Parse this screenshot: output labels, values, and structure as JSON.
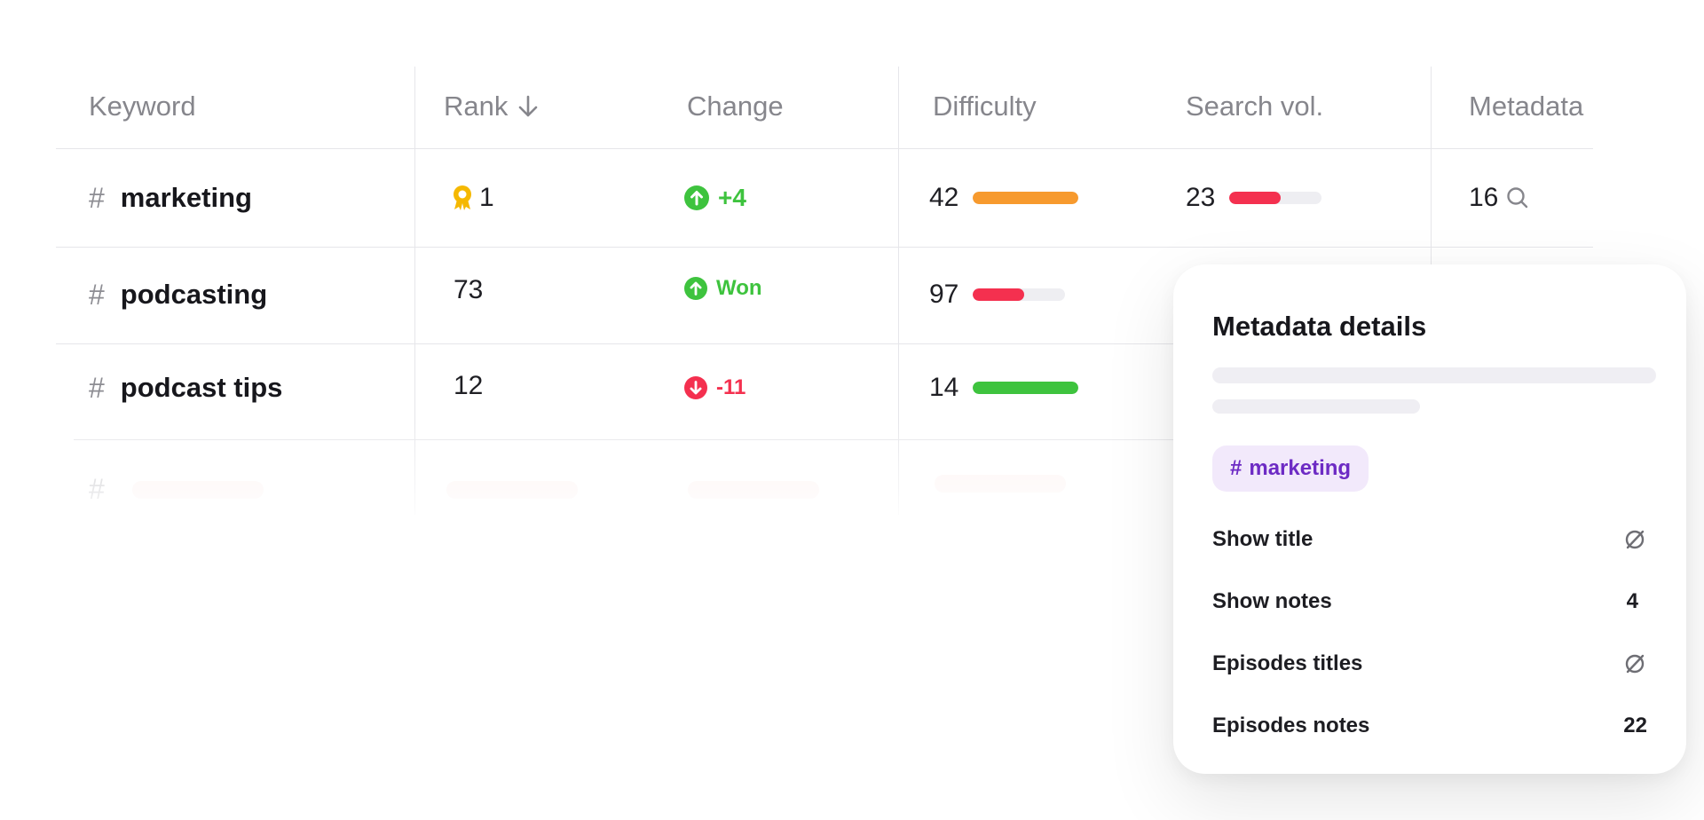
{
  "headers": {
    "keyword": "Keyword",
    "rank": "Rank",
    "change": "Change",
    "difficulty": "Difficulty",
    "search_vol": "Search vol.",
    "metadata": "Metadata"
  },
  "rows": [
    {
      "keyword": "marketing",
      "rank": "1",
      "rank_badge": "award-icon",
      "change": "+4",
      "change_dir": "up",
      "difficulty": "42",
      "difficulty_fill": 1.0,
      "difficulty_color": "#f79a2e",
      "search_vol": "23",
      "search_vol_fill": 0.55,
      "search_vol_color": "#f4304f",
      "metadata": "16"
    },
    {
      "keyword": "podcasting",
      "rank": "73",
      "change": "Won",
      "change_dir": "up",
      "difficulty": "97",
      "difficulty_fill": 0.55,
      "difficulty_color": "#f4304f"
    },
    {
      "keyword": "podcast tips",
      "rank": "12",
      "change": "-11",
      "change_dir": "down",
      "difficulty": "14",
      "difficulty_fill": 1.0,
      "difficulty_color": "#3ec33e"
    }
  ],
  "panel": {
    "title": "Metadata details",
    "tag": "marketing",
    "items": [
      {
        "label": "Show title",
        "value": "",
        "icon": "empty-set-icon"
      },
      {
        "label": "Show notes",
        "value": "4"
      },
      {
        "label": "Episodes titles",
        "value": "",
        "icon": "empty-set-icon"
      },
      {
        "label": "Episodes notes",
        "value": "22"
      }
    ]
  },
  "colors": {
    "up": "#3ec33e",
    "down": "#f4304f",
    "award": "#f5b800",
    "tag_bg": "#f2e9fb",
    "tag_text": "#6d2bc4"
  }
}
